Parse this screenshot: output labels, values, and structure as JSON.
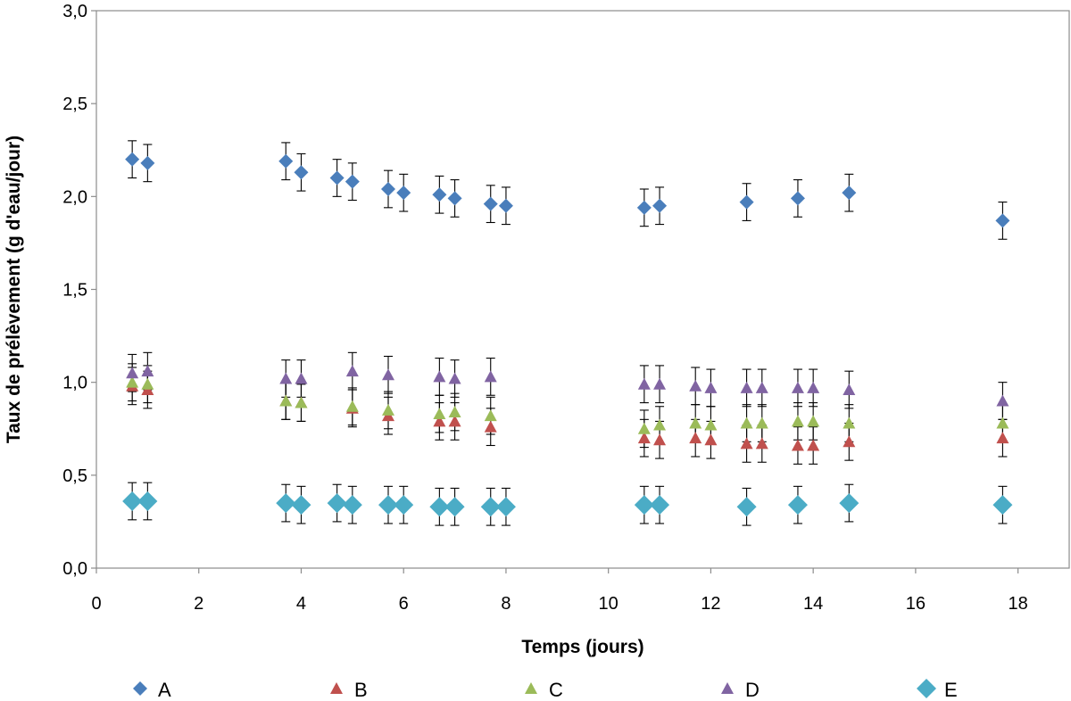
{
  "chart_data": {
    "type": "scatter",
    "title": "",
    "xlabel": "Temps (jours)",
    "ylabel": "Taux de prélèvement (g d'eau/jour)",
    "xlim": [
      0,
      19
    ],
    "ylim": [
      0,
      3
    ],
    "xticks": [
      0,
      2,
      4,
      6,
      8,
      10,
      12,
      14,
      16,
      18
    ],
    "yticks": [
      0,
      0.5,
      1,
      1.5,
      2,
      2.5,
      3
    ],
    "xtick_labels": [
      "0",
      "2",
      "4",
      "6",
      "8",
      "10",
      "12",
      "14",
      "16",
      "18"
    ],
    "ytick_labels": [
      "0,0",
      "0,5",
      "1,0",
      "1,5",
      "2,0",
      "2,5",
      "3,0"
    ],
    "grid": false,
    "legend_position": "bottom",
    "error_bars": true,
    "series": [
      {
        "name": "A",
        "marker": "diamond",
        "color": "#4A7EBB",
        "x": [
          0.7,
          1.0,
          3.7,
          4.0,
          4.7,
          5.0,
          5.7,
          6.0,
          6.7,
          7.0,
          7.7,
          8.0,
          10.7,
          11.0,
          12.7,
          13.7,
          14.7,
          17.7
        ],
        "y": [
          2.2,
          2.18,
          2.19,
          2.13,
          2.1,
          2.08,
          2.04,
          2.02,
          2.01,
          1.99,
          1.96,
          1.95,
          1.94,
          1.95,
          1.97,
          1.99,
          2.02,
          1.87
        ],
        "err": [
          0.1,
          0.1,
          0.1,
          0.1,
          0.1,
          0.1,
          0.1,
          0.1,
          0.1,
          0.1,
          0.1,
          0.1,
          0.1,
          0.1,
          0.1,
          0.1,
          0.1,
          0.1
        ]
      },
      {
        "name": "B",
        "marker": "triangle",
        "color": "#C0504D",
        "x": [
          0.7,
          1.0,
          3.7,
          4.0,
          5.0,
          5.7,
          6.7,
          7.0,
          7.7,
          10.7,
          11.0,
          11.7,
          12.0,
          12.7,
          13.0,
          13.7,
          14.0,
          14.7,
          17.7
        ],
        "y": [
          0.98,
          0.96,
          0.9,
          0.89,
          0.86,
          0.82,
          0.79,
          0.79,
          0.76,
          0.7,
          0.69,
          0.7,
          0.69,
          0.67,
          0.67,
          0.66,
          0.66,
          0.68,
          0.7
        ],
        "err": [
          0.1,
          0.1,
          0.1,
          0.1,
          0.1,
          0.1,
          0.1,
          0.1,
          0.1,
          0.1,
          0.1,
          0.1,
          0.1,
          0.1,
          0.1,
          0.1,
          0.1,
          0.1,
          0.1
        ]
      },
      {
        "name": "C",
        "marker": "triangle",
        "color": "#9BBB59",
        "x": [
          0.7,
          1.0,
          3.7,
          4.0,
          5.0,
          5.7,
          6.7,
          7.0,
          7.7,
          10.7,
          11.0,
          11.7,
          12.0,
          12.7,
          13.0,
          13.7,
          14.0,
          14.7,
          17.7
        ],
        "y": [
          1.0,
          0.99,
          0.9,
          0.89,
          0.87,
          0.85,
          0.83,
          0.84,
          0.82,
          0.75,
          0.77,
          0.78,
          0.77,
          0.78,
          0.78,
          0.79,
          0.79,
          0.78,
          0.78
        ],
        "err": [
          0.1,
          0.1,
          0.1,
          0.1,
          0.1,
          0.1,
          0.1,
          0.1,
          0.1,
          0.1,
          0.1,
          0.1,
          0.1,
          0.1,
          0.1,
          0.1,
          0.1,
          0.1,
          0.1
        ]
      },
      {
        "name": "D",
        "marker": "triangle",
        "color": "#8064A2",
        "x": [
          0.7,
          1.0,
          3.7,
          4.0,
          5.0,
          5.7,
          6.7,
          7.0,
          7.7,
          10.7,
          11.0,
          11.7,
          12.0,
          12.7,
          13.0,
          13.7,
          14.0,
          14.7,
          17.7
        ],
        "y": [
          1.05,
          1.06,
          1.02,
          1.02,
          1.06,
          1.04,
          1.03,
          1.02,
          1.03,
          0.99,
          0.99,
          0.98,
          0.97,
          0.97,
          0.97,
          0.97,
          0.97,
          0.96,
          0.9
        ],
        "err": [
          0.1,
          0.1,
          0.1,
          0.1,
          0.1,
          0.1,
          0.1,
          0.1,
          0.1,
          0.1,
          0.1,
          0.1,
          0.1,
          0.1,
          0.1,
          0.1,
          0.1,
          0.1,
          0.1
        ]
      },
      {
        "name": "E",
        "marker": "diamond-large",
        "color": "#4BACC6",
        "x": [
          0.7,
          1.0,
          3.7,
          4.0,
          4.7,
          5.0,
          5.7,
          6.0,
          6.7,
          7.0,
          7.7,
          8.0,
          10.7,
          11.0,
          12.7,
          13.7,
          14.7,
          17.7
        ],
        "y": [
          0.36,
          0.36,
          0.35,
          0.34,
          0.35,
          0.34,
          0.34,
          0.34,
          0.33,
          0.33,
          0.33,
          0.33,
          0.34,
          0.34,
          0.33,
          0.34,
          0.35,
          0.34
        ],
        "err": [
          0.1,
          0.1,
          0.1,
          0.1,
          0.1,
          0.1,
          0.1,
          0.1,
          0.1,
          0.1,
          0.1,
          0.1,
          0.1,
          0.1,
          0.1,
          0.1,
          0.1,
          0.1
        ]
      }
    ]
  }
}
